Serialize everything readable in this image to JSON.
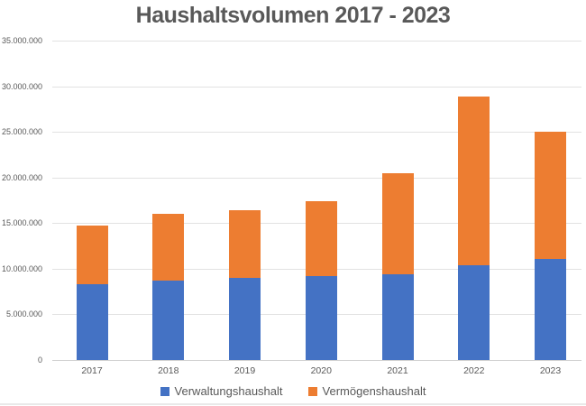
{
  "title": "Haushaltsvolumen 2017 - 2023",
  "colors": {
    "series_blue": "#4472C4",
    "series_orange": "#ED7D31",
    "text_gray": "#595959",
    "gridline": "#E2E2E2",
    "axis_line": "#D0D0D0",
    "background": "#FFFFFF"
  },
  "chart_data": {
    "type": "bar",
    "stacked": true,
    "title": "Haushaltsvolumen 2017 - 2023",
    "categories": [
      "2017",
      "2018",
      "2019",
      "2020",
      "2021",
      "2022",
      "2023"
    ],
    "series": [
      {
        "name": "Verwaltungshaushalt",
        "color": "#4472C4",
        "values": [
          8300000,
          8700000,
          9000000,
          9200000,
          9400000,
          10400000,
          11100000
        ]
      },
      {
        "name": "Vermögenshaushalt",
        "color": "#ED7D31",
        "values": [
          6400000,
          7300000,
          7400000,
          8200000,
          11100000,
          18500000,
          13900000
        ]
      }
    ],
    "totals": [
      14700000,
      16000000,
      16400000,
      17400000,
      20500000,
      28900000,
      25000000
    ],
    "xlabel": "",
    "ylabel": "",
    "ylim": [
      0,
      35000000
    ],
    "ytick_interval": 5000000,
    "ytick_labels": [
      "0",
      "5.000.000",
      "10.000.000",
      "15.000.000",
      "20.000.000",
      "25.000.000",
      "30.000.000",
      "35.000.000"
    ],
    "grid": true,
    "legend_position": "bottom"
  }
}
